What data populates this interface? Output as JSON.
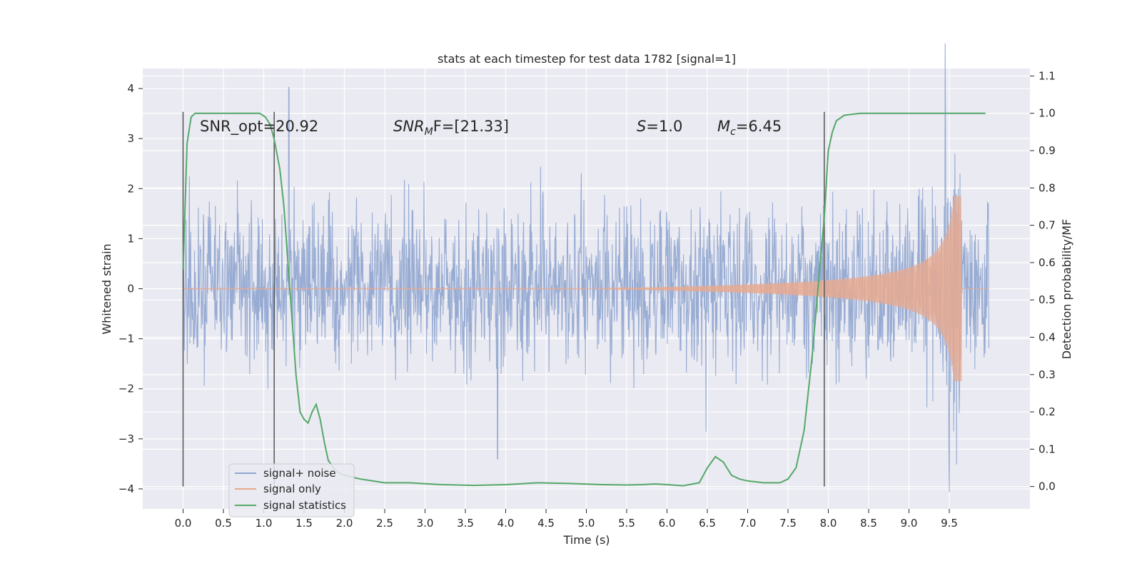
{
  "chart_data": {
    "type": "line",
    "title": "stats at each timestep for test data 1782 [signal=1]",
    "xlabel": "Time (s)",
    "ylabel_left": "Whitened strain",
    "ylabel_right": "Detection probability/MF",
    "xlim": [
      -0.5,
      10.5
    ],
    "ylim_left": [
      -4.4,
      4.4
    ],
    "ylim_right": [
      -0.06,
      1.12
    ],
    "x_ticks": [
      "0.0",
      "0.5",
      "1.0",
      "1.5",
      "2.0",
      "2.5",
      "3.0",
      "3.5",
      "4.0",
      "4.5",
      "5.0",
      "5.5",
      "6.0",
      "6.5",
      "7.0",
      "7.5",
      "8.0",
      "8.5",
      "9.0",
      "9.5"
    ],
    "y_ticks_left": [
      "4",
      "3",
      "2",
      "1",
      "0",
      "−1",
      "−2",
      "−3",
      "−4"
    ],
    "y_ticks_right": [
      "1.1",
      "1.0",
      "0.9",
      "0.8",
      "0.7",
      "0.6",
      "0.5",
      "0.4",
      "0.3",
      "0.2",
      "0.1",
      "0.0"
    ],
    "grid": true,
    "legend_position": "lower-left",
    "annotations": {
      "snr_opt": "SNR_opt=20.92",
      "snr_mf_sym": "SNR",
      "snr_mf_sub": "M",
      "snr_mf_rest": "F=[21.33]",
      "s_sym": "S",
      "s_rest": "=1.0",
      "mc_sym": "M",
      "mc_sub": "c",
      "mc_rest": "=6.45"
    },
    "vertical_lines_x": [
      0.0,
      1.13,
      7.95
    ],
    "series": [
      {
        "name": "signal+ noise",
        "color": "#8fa5cf",
        "description_values": "dense whitened noise, envelope approx ±2.3 with spikes to 4.02 (t≈1.31) and -4.05 (t≈9.5)",
        "x_range": [
          0.0,
          9.99
        ]
      },
      {
        "name": "signal only",
        "color": "#e8a98f",
        "chirp_peak_time": 9.65,
        "chirp_peak_amplitude": 1.85
      },
      {
        "name": "signal statistics",
        "color": "#55a868",
        "x": [
          0.0,
          0.05,
          0.1,
          0.15,
          0.25,
          0.4,
          0.6,
          0.8,
          0.95,
          1.02,
          1.08,
          1.13,
          1.2,
          1.25,
          1.3,
          1.35,
          1.4,
          1.45,
          1.5,
          1.55,
          1.6,
          1.65,
          1.7,
          1.75,
          1.8,
          1.9,
          2.0,
          2.2,
          2.5,
          2.8,
          3.2,
          3.6,
          4.0,
          4.4,
          4.8,
          5.2,
          5.5,
          5.7,
          5.85,
          6.0,
          6.2,
          6.4,
          6.5,
          6.6,
          6.7,
          6.8,
          6.9,
          7.0,
          7.2,
          7.4,
          7.5,
          7.6,
          7.7,
          7.8,
          7.9,
          7.95,
          8.0,
          8.05,
          8.1,
          8.2,
          8.4,
          8.8,
          9.2,
          9.6,
          9.95
        ],
        "values": [
          0.58,
          0.92,
          0.99,
          1.0,
          1.0,
          1.0,
          1.0,
          1.0,
          1.0,
          0.99,
          0.97,
          0.93,
          0.85,
          0.75,
          0.6,
          0.45,
          0.3,
          0.2,
          0.18,
          0.17,
          0.2,
          0.22,
          0.18,
          0.12,
          0.07,
          0.04,
          0.03,
          0.02,
          0.01,
          0.01,
          0.005,
          0.003,
          0.005,
          0.01,
          0.008,
          0.005,
          0.004,
          0.005,
          0.007,
          0.005,
          0.002,
          0.01,
          0.05,
          0.08,
          0.065,
          0.03,
          0.02,
          0.015,
          0.01,
          0.01,
          0.02,
          0.05,
          0.15,
          0.35,
          0.6,
          0.72,
          0.9,
          0.95,
          0.98,
          0.995,
          1.0,
          1.0,
          1.0,
          1.0,
          1.0
        ]
      }
    ]
  }
}
